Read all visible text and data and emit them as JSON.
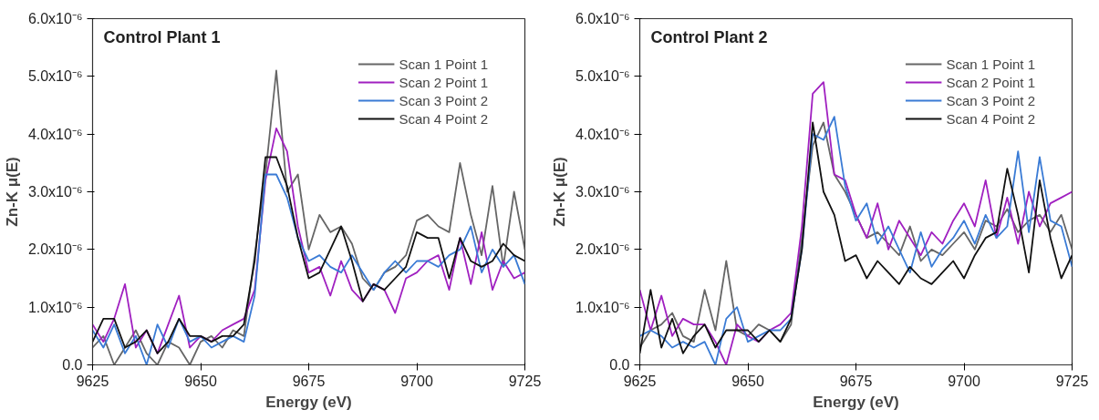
{
  "chart_data": [
    {
      "type": "line",
      "title": "Control Plant 1",
      "xlabel": "Energy (eV)",
      "ylabel": "Zn-K μ(E)",
      "x": [
        9625,
        9627.5,
        9630,
        9632.5,
        9635,
        9637.5,
        9640,
        9642.5,
        9645,
        9647.5,
        9650,
        9652.5,
        9655,
        9657.5,
        9660,
        9662.5,
        9665,
        9667.5,
        9670,
        9672.5,
        9675,
        9677.5,
        9680,
        9682.5,
        9685,
        9687.5,
        9690,
        9692.5,
        9695,
        9697.5,
        9700,
        9702.5,
        9705,
        9707.5,
        9710,
        9712.5,
        9715,
        9717.5,
        9720,
        9722.5,
        9725
      ],
      "xlim": [
        9625,
        9725
      ],
      "xticks": [
        9625,
        9650,
        9675,
        9700,
        9725
      ],
      "ylim": [
        0,
        6e-06
      ],
      "yticks": [
        {
          "value": 0,
          "label": "0.0"
        },
        {
          "value": 1e-06,
          "label": "1.0x10⁻⁶"
        },
        {
          "value": 2e-06,
          "label": "2.0x10⁻⁶"
        },
        {
          "value": 3e-06,
          "label": "3.0x10⁻⁶"
        },
        {
          "value": 4e-06,
          "label": "4.0x10⁻⁶"
        },
        {
          "value": 5e-06,
          "label": "5.0x10⁻⁶"
        },
        {
          "value": 6e-06,
          "label": "6.0x10⁻⁶"
        }
      ],
      "grid": false,
      "legend": "top right",
      "line_style": "solid",
      "series": [
        {
          "name": "Scan 1 Point 1",
          "color": "#666666",
          "values": [
            3e-07,
            5e-07,
            0.0,
            3e-07,
            6e-07,
            2e-07,
            0.0,
            4e-07,
            3e-07,
            0.0,
            4e-07,
            5e-07,
            3e-07,
            6e-07,
            5e-07,
            1.9e-06,
            3.3e-06,
            5.1e-06,
            3e-06,
            3.3e-06,
            2e-06,
            2.6e-06,
            2.3e-06,
            2.4e-06,
            2.1e-06,
            1.5e-06,
            1.3e-06,
            1.6e-06,
            1.7e-06,
            1.9e-06,
            2.5e-06,
            2.6e-06,
            2.4e-06,
            2.3e-06,
            3.5e-06,
            2.6e-06,
            1.9e-06,
            3.1e-06,
            1.7e-06,
            3e-06,
            2e-06
          ]
        },
        {
          "name": "Scan 2 Point 1",
          "color": "#a020c0",
          "values": [
            7e-07,
            4e-07,
            8e-07,
            1.4e-06,
            3e-07,
            6e-07,
            2e-07,
            7e-07,
            1.2e-06,
            3e-07,
            5e-07,
            4e-07,
            6e-07,
            7e-07,
            8e-07,
            1.3e-06,
            3.2e-06,
            4.1e-06,
            3.7e-06,
            2.4e-06,
            1.6e-06,
            1.7e-06,
            1.2e-06,
            1.8e-06,
            1.3e-06,
            1.1e-06,
            1.4e-06,
            1.3e-06,
            9e-07,
            1.5e-06,
            1.6e-06,
            1.8e-06,
            1.9e-06,
            1.3e-06,
            2.2e-06,
            1.4e-06,
            2.3e-06,
            1.3e-06,
            1.8e-06,
            1.5e-06,
            1.6e-06
          ]
        },
        {
          "name": "Scan 3 Point 2",
          "color": "#3a7bd5",
          "values": [
            6e-07,
            3e-07,
            7e-07,
            2e-07,
            5e-07,
            0.0,
            7e-07,
            3e-07,
            8e-07,
            4e-07,
            5e-07,
            3e-07,
            4e-07,
            5e-07,
            4e-07,
            1.2e-06,
            3.3e-06,
            3.3e-06,
            2.9e-06,
            2.2e-06,
            1.8e-06,
            1.9e-06,
            1.7e-06,
            1.6e-06,
            1.9e-06,
            1.6e-06,
            1.3e-06,
            1.6e-06,
            1.8e-06,
            1.6e-06,
            1.8e-06,
            1.8e-06,
            1.7e-06,
            1.9e-06,
            2e-06,
            2.4e-06,
            1.6e-06,
            2e-06,
            1.7e-06,
            1.9e-06,
            1.4e-06
          ]
        },
        {
          "name": "Scan 4 Point 2",
          "color": "#111111",
          "values": [
            4e-07,
            8e-07,
            8e-07,
            3e-07,
            4e-07,
            6e-07,
            2e-07,
            4e-07,
            8e-07,
            5e-07,
            5e-07,
            4e-07,
            5e-07,
            5e-07,
            7e-07,
            1.8e-06,
            3.6e-06,
            3.6e-06,
            3.1e-06,
            2.2e-06,
            1.5e-06,
            1.6e-06,
            2e-06,
            2.4e-06,
            1.8e-06,
            1.1e-06,
            1.4e-06,
            1.3e-06,
            1.5e-06,
            1.7e-06,
            2.3e-06,
            2.2e-06,
            2.2e-06,
            1.5e-06,
            2.2e-06,
            1.8e-06,
            1.7e-06,
            1.8e-06,
            2.1e-06,
            1.9e-06,
            1.8e-06
          ]
        }
      ]
    },
    {
      "type": "line",
      "title": "Control Plant 2",
      "xlabel": "Energy (eV)",
      "ylabel": "Zn-K μ(E)",
      "x": [
        9625,
        9627.5,
        9630,
        9632.5,
        9635,
        9637.5,
        9640,
        9642.5,
        9645,
        9647.5,
        9650,
        9652.5,
        9655,
        9657.5,
        9660,
        9662.5,
        9665,
        9667.5,
        9670,
        9672.5,
        9675,
        9677.5,
        9680,
        9682.5,
        9685,
        9687.5,
        9690,
        9692.5,
        9695,
        9697.5,
        9700,
        9702.5,
        9705,
        9707.5,
        9710,
        9712.5,
        9715,
        9717.5,
        9720,
        9722.5,
        9725
      ],
      "xlim": [
        9625,
        9725
      ],
      "xticks": [
        9625,
        9650,
        9675,
        9700,
        9725
      ],
      "ylim": [
        0,
        6e-06
      ],
      "yticks": [
        {
          "value": 0,
          "label": "0.0"
        },
        {
          "value": 1e-06,
          "label": "1.0x10⁻⁶"
        },
        {
          "value": 2e-06,
          "label": "2.0x10⁻⁶"
        },
        {
          "value": 3e-06,
          "label": "3.0x10⁻⁶"
        },
        {
          "value": 4e-06,
          "label": "4.0x10⁻⁶"
        },
        {
          "value": 5e-06,
          "label": "5.0x10⁻⁶"
        },
        {
          "value": 6e-06,
          "label": "6.0x10⁻⁶"
        }
      ],
      "grid": false,
      "legend": "top right",
      "line_style": "solid",
      "series": [
        {
          "name": "Scan 1 Point 1",
          "color": "#666666",
          "values": [
            3e-07,
            6e-07,
            7e-07,
            9e-07,
            5e-07,
            4e-07,
            1.3e-06,
            6e-07,
            1.8e-06,
            6e-07,
            5e-07,
            7e-07,
            6e-07,
            4e-07,
            7e-07,
            2.2e-06,
            3.8e-06,
            4.2e-06,
            3.3e-06,
            3e-06,
            2.6e-06,
            2.2e-06,
            2.3e-06,
            2.1e-06,
            1.9e-06,
            2.4e-06,
            1.8e-06,
            2e-06,
            1.9e-06,
            2.1e-06,
            2.3e-06,
            2e-06,
            2.5e-06,
            2.4e-06,
            2.7e-06,
            2.3e-06,
            2.5e-06,
            2.6e-06,
            2.3e-06,
            2.6e-06,
            2e-06
          ]
        },
        {
          "name": "Scan 2 Point 1",
          "color": "#a020c0",
          "values": [
            1.3e-06,
            6e-07,
            1.2e-06,
            5e-07,
            8e-07,
            7e-07,
            7e-07,
            4e-07,
            0.0,
            7e-07,
            5e-07,
            4e-07,
            6e-07,
            7e-07,
            9e-07,
            2.4e-06,
            4.7e-06,
            4.9e-06,
            3.3e-06,
            3.2e-06,
            2.6e-06,
            2.2e-06,
            2.8e-06,
            2e-06,
            2.5e-06,
            2.2e-06,
            1.9e-06,
            2.3e-06,
            2.1e-06,
            2.5e-06,
            2.8e-06,
            2.4e-06,
            3.2e-06,
            2.2e-06,
            2.9e-06,
            2.1e-06,
            3e-06,
            2.4e-06,
            2.8e-06,
            2.9e-06,
            3e-06
          ]
        },
        {
          "name": "Scan 3 Point 2",
          "color": "#3a7bd5",
          "values": [
            5e-07,
            6e-07,
            5e-07,
            3e-07,
            4e-07,
            3e-07,
            4e-07,
            0.0,
            8e-07,
            1e-06,
            4e-07,
            5e-07,
            6e-07,
            6e-07,
            8e-07,
            2e-06,
            4e-06,
            3.9e-06,
            4.3e-06,
            3.1e-06,
            2.5e-06,
            2.8e-06,
            2.1e-06,
            2.4e-06,
            2e-06,
            1.6e-06,
            2.3e-06,
            1.7e-06,
            2e-06,
            2.2e-06,
            2.5e-06,
            2.1e-06,
            2.6e-06,
            2.2e-06,
            2.4e-06,
            3.7e-06,
            2.3e-06,
            3.6e-06,
            2.5e-06,
            2.4e-06,
            1.7e-06
          ]
        },
        {
          "name": "Scan 4 Point 2",
          "color": "#111111",
          "values": [
            2e-07,
            1.3e-06,
            3e-07,
            8e-07,
            2e-07,
            5e-07,
            7e-07,
            3e-07,
            6e-07,
            6e-07,
            6e-07,
            4e-07,
            6e-07,
            4e-07,
            8e-07,
            2e-06,
            4.2e-06,
            3e-06,
            2.6e-06,
            1.8e-06,
            1.9e-06,
            1.5e-06,
            1.8e-06,
            1.6e-06,
            1.4e-06,
            1.7e-06,
            1.5e-06,
            1.4e-06,
            1.6e-06,
            1.8e-06,
            1.5e-06,
            1.9e-06,
            2.2e-06,
            2.3e-06,
            3.4e-06,
            2.6e-06,
            1.6e-06,
            3.2e-06,
            2.2e-06,
            1.5e-06,
            1.9e-06
          ]
        }
      ]
    }
  ]
}
